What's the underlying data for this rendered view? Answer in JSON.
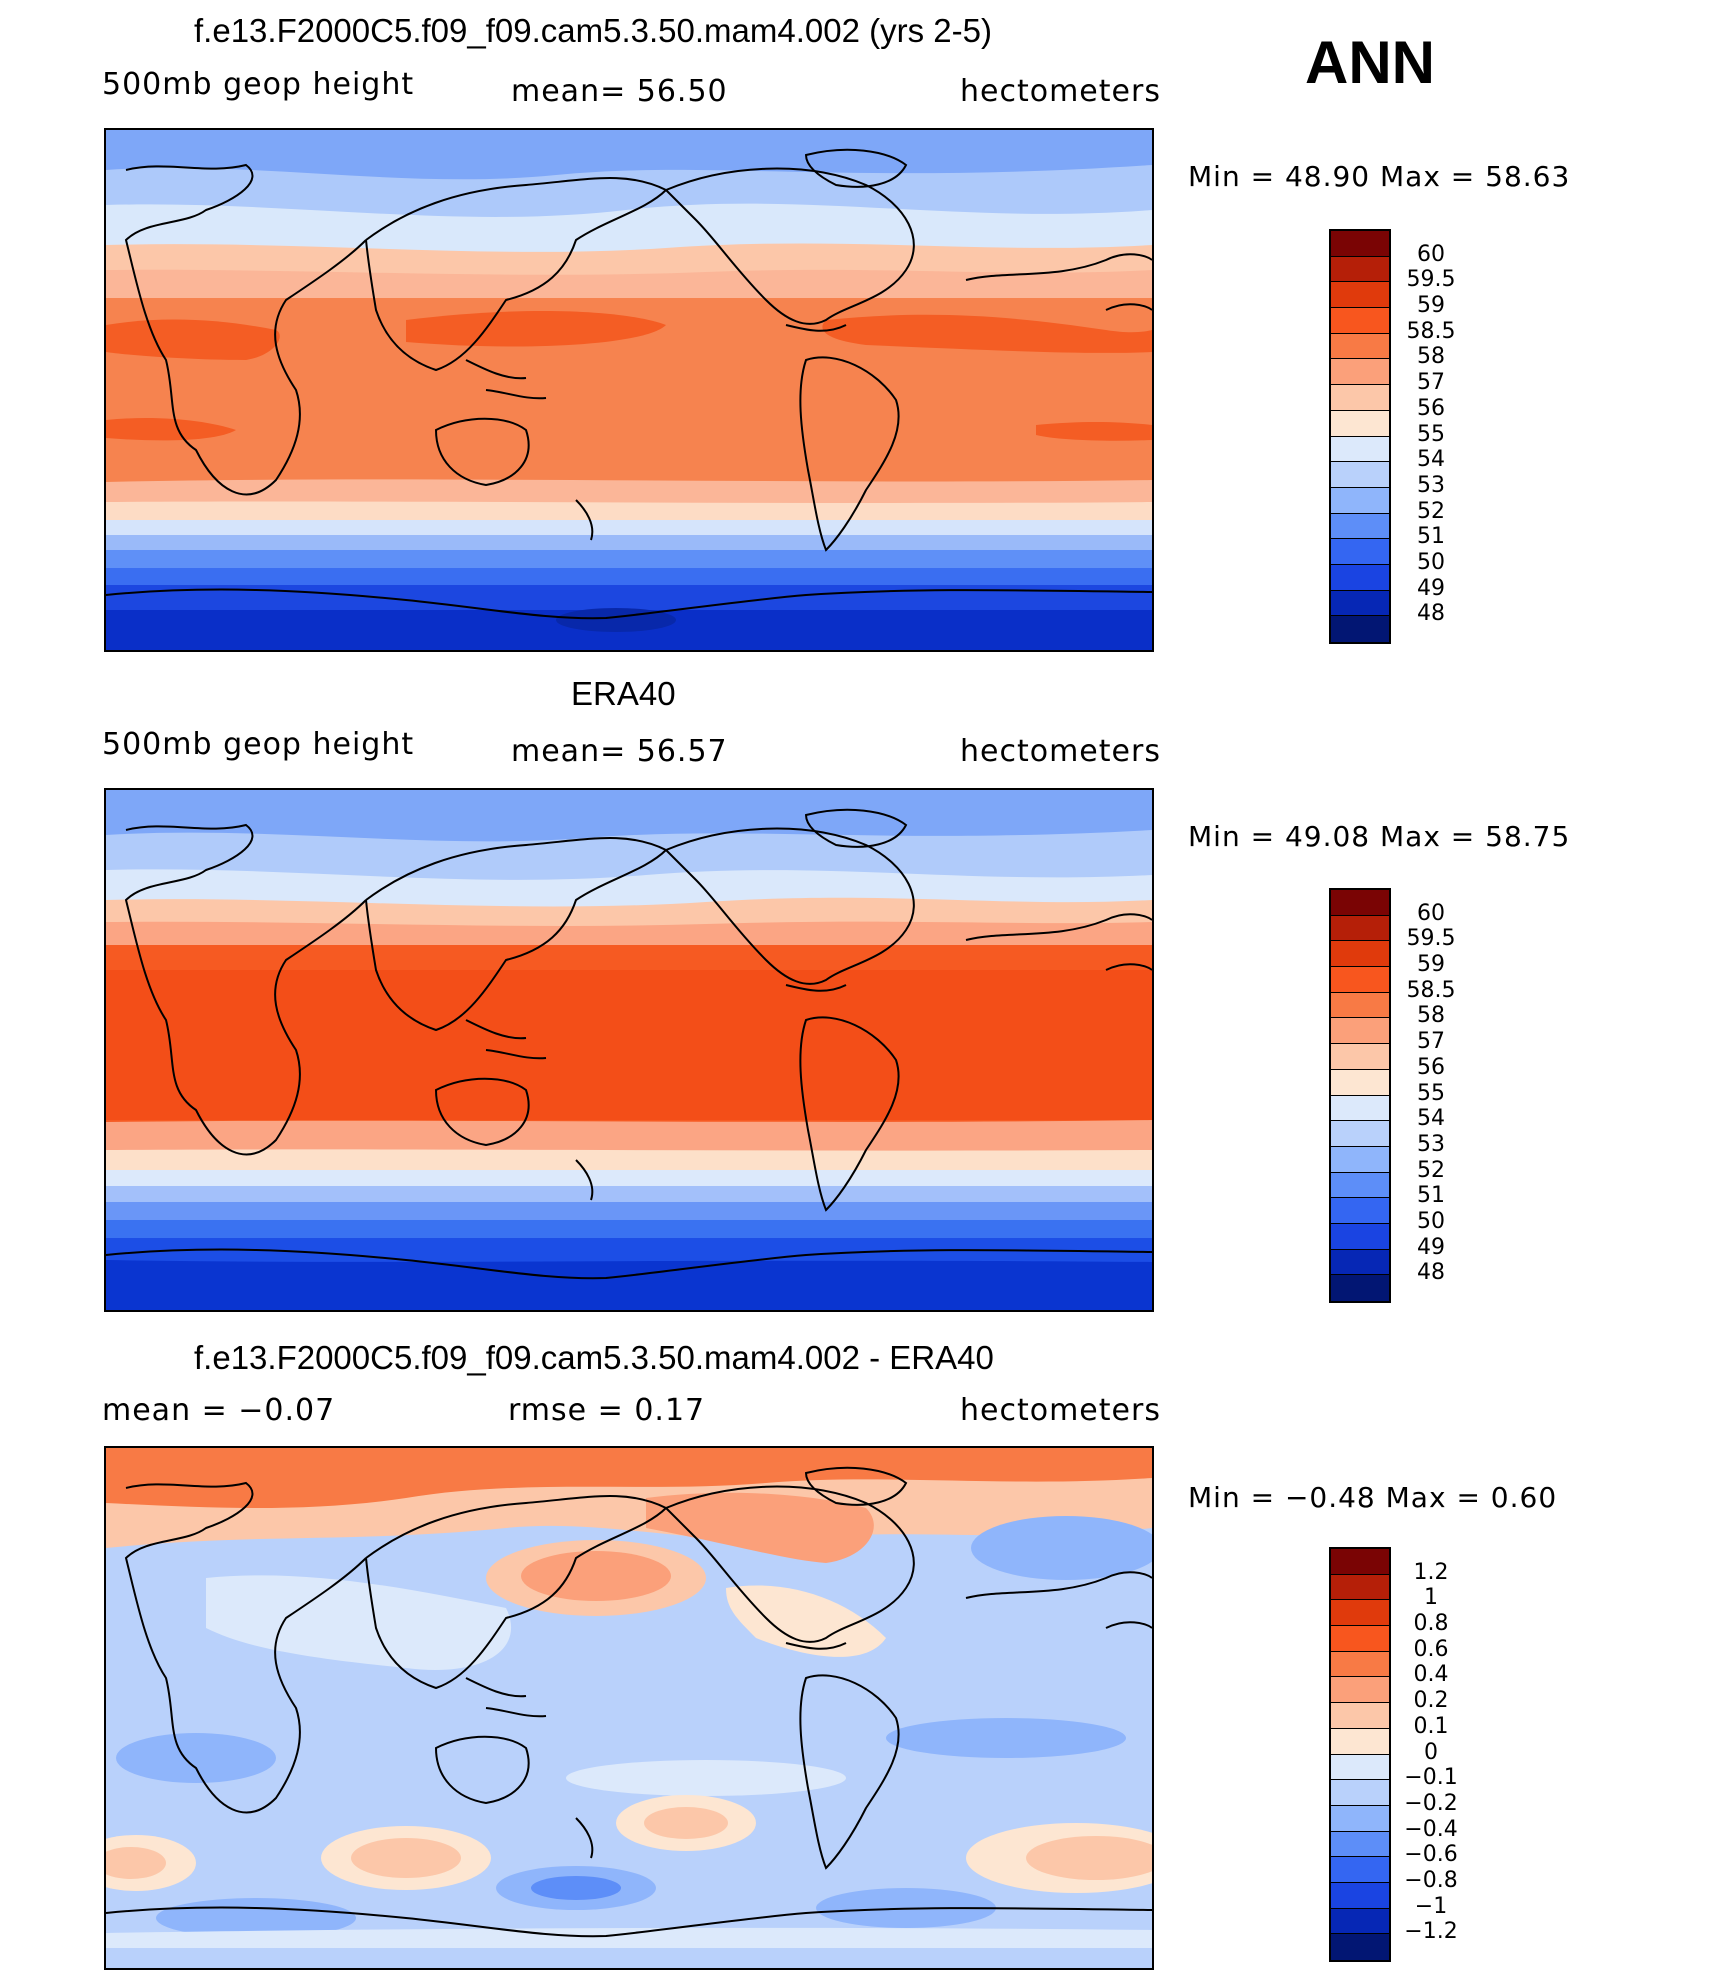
{
  "season": "ANN",
  "panels": [
    {
      "title": "f.e13.F2000C5.f09_f09.cam5.3.50.mam4.002 (yrs 2-5)",
      "left_label": "500mb  geop  height",
      "center_label": "mean=   56.50",
      "right_label": "hectometers",
      "min_max": "Min  =    48.90  Max  =    58.63",
      "colorbar": {
        "labels": [
          "60",
          "59.5",
          "59",
          "58.5",
          "58",
          "57",
          "56",
          "55",
          "54",
          "53",
          "52",
          "51",
          "50",
          "49",
          "48"
        ],
        "colors": [
          "#7a0404",
          "#b51f08",
          "#e03a0c",
          "#f8561e",
          "#f87a45",
          "#fba07a",
          "#fcc7a9",
          "#fde6d2",
          "#dce9fb",
          "#b9d1fb",
          "#8fb5fb",
          "#5d8ef8",
          "#3466f2",
          "#1a44e2",
          "#0627b5",
          "#021673"
        ]
      },
      "field_colors": {
        "polar_s_deep": "#0a2fc8",
        "polar_s": "#1c47e0",
        "s_mid1": "#3a6ef1",
        "s_mid2": "#5f90f7",
        "s_mid3": "#9abaf9",
        "s_edge": "#d5e4fb",
        "sub_s": "#fddcc5",
        "subtrop_s": "#fbb698",
        "tropics": "#f6834f",
        "core": "#f45d24",
        "sub_n": "#fcc7a9",
        "n_mid1": "#d9e8fb",
        "n_mid2": "#adc9fa",
        "polar_n": "#7ea7f8"
      }
    },
    {
      "title": "ERA40",
      "left_label": "500mb  geop  height",
      "center_label": "mean=   56.57",
      "right_label": "hectometers",
      "min_max": "Min  =    49.08  Max  =    58.75",
      "colorbar": {
        "labels": [
          "60",
          "59.5",
          "59",
          "58.5",
          "58",
          "57",
          "56",
          "55",
          "54",
          "53",
          "52",
          "51",
          "50",
          "49",
          "48"
        ],
        "colors": [
          "#7a0404",
          "#b51f08",
          "#e03a0c",
          "#f8561e",
          "#f87a45",
          "#fba07a",
          "#fcc7a9",
          "#fde6d2",
          "#dce9fb",
          "#b9d1fb",
          "#8fb5fb",
          "#5d8ef8",
          "#3466f2",
          "#1a44e2",
          "#0627b5",
          "#021673"
        ]
      },
      "field_colors": {
        "polar_s_deep": "#0a35d0",
        "polar_s": "#1c4ee6",
        "s_mid1": "#3a72f1",
        "s_mid2": "#6a96f7",
        "s_mid3": "#a3c0fa",
        "s_edge": "#dce9fb",
        "sub_s": "#fde0c9",
        "subtrop_s": "#fba584",
        "tropics": "#f65a22",
        "core": "#f34e18",
        "sub_n": "#fcc7a9",
        "n_mid1": "#dae8fb",
        "n_mid2": "#b0cbfa",
        "polar_n": "#7ea7f8"
      }
    },
    {
      "title": "f.e13.F2000C5.f09_f09.cam5.3.50.mam4.002 - ERA40",
      "left_label": "mean  =    −0.07",
      "center_label": "rmse  =     0.17",
      "right_label": "hectometers",
      "min_max": "Min  =    −0.48  Max  =     0.60",
      "colorbar": {
        "labels": [
          "1.2",
          "1",
          "0.8",
          "0.6",
          "0.4",
          "0.2",
          "0.1",
          "0",
          "−0.1",
          "−0.2",
          "−0.4",
          "−0.6",
          "−0.8",
          "−1",
          "−1.2"
        ],
        "colors": [
          "#7a0404",
          "#b51f08",
          "#e03a0c",
          "#f8561e",
          "#f87a45",
          "#fba07a",
          "#fcc7a9",
          "#fde6d2",
          "#dce9fb",
          "#b9d1fb",
          "#8fb5fb",
          "#5d8ef8",
          "#3466f2",
          "#1a44e2",
          "#0627b5",
          "#021673"
        ]
      }
    }
  ]
}
